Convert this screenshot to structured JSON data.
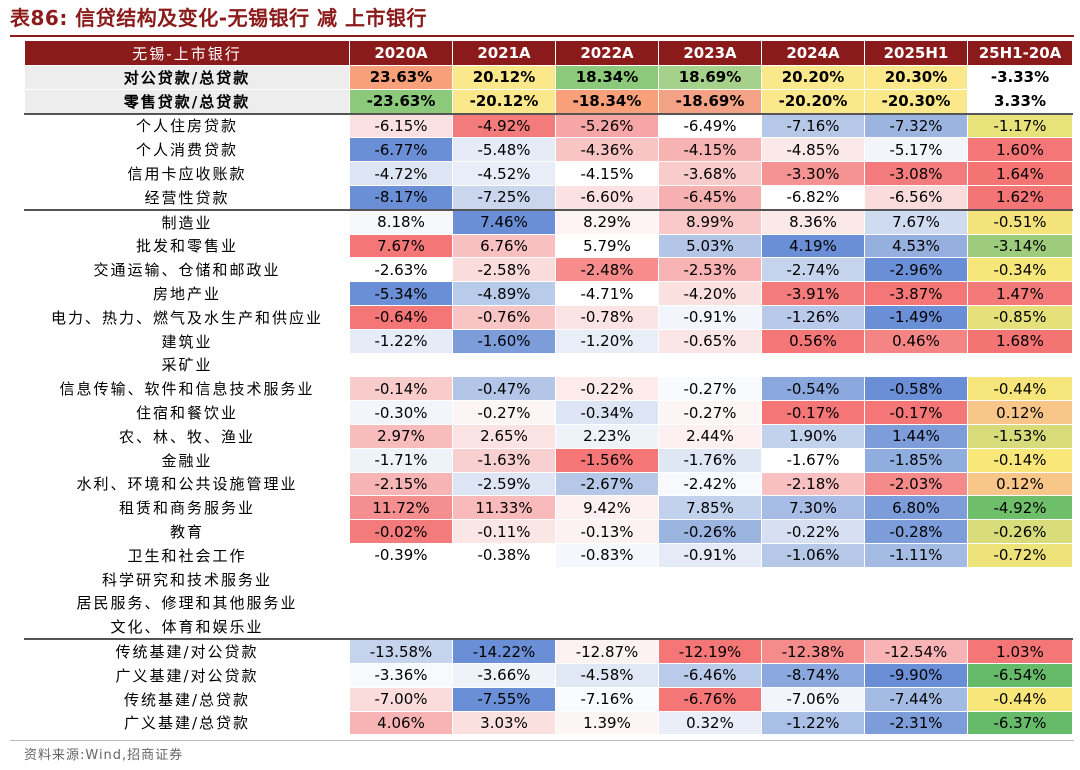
{
  "title": "表86:  信贷结构及变化-无锡银行 减 上市银行",
  "source": "资料来源:Wind,招商证券",
  "chart_data": {
    "type": "table",
    "row_header": "无锡-上市银行",
    "columns": [
      "2020A",
      "2021A",
      "2022A",
      "2023A",
      "2024A",
      "2025H1",
      "25H1-20A"
    ],
    "rows": [
      {
        "label": "对公贷款/总贷款",
        "values": [
          "23.63%",
          "20.12%",
          "18.34%",
          "18.69%",
          "20.20%",
          "20.30%",
          "-3.33%"
        ],
        "colors": [
          "#f7a07a",
          "#fbe88a",
          "#8cc97a",
          "#a6d18a",
          "#fbe88a",
          "#fbe88a",
          "#ffffff"
        ],
        "bold": true,
        "group": "top"
      },
      {
        "label": "零售贷款/总贷款",
        "values": [
          "-23.63%",
          "-20.12%",
          "-18.34%",
          "-18.69%",
          "-20.20%",
          "-20.30%",
          "3.33%"
        ],
        "colors": [
          "#8cc97a",
          "#fbe88a",
          "#f7a07a",
          "#f4a285",
          "#fbe88a",
          "#fbe88a",
          "#ffffff"
        ],
        "bold": true,
        "group": "top"
      },
      {
        "label": "个人住房贷款",
        "values": [
          "-6.15%",
          "-4.92%",
          "-5.26%",
          "-6.49%",
          "-7.16%",
          "-7.32%",
          "-1.17%"
        ],
        "colors": [
          "#fbe1e1",
          "#f47b7b",
          "#f6a6a6",
          "#ffffff",
          "#b6c8e8",
          "#9bb5e0",
          "#e8e27a"
        ],
        "sep": true
      },
      {
        "label": "个人消费贷款",
        "values": [
          "-6.77%",
          "-5.48%",
          "-4.36%",
          "-4.15%",
          "-4.85%",
          "-5.17%",
          "1.60%"
        ],
        "colors": [
          "#6a8fd6",
          "#e6ecf7",
          "#f8c4c4",
          "#f7b2b2",
          "#fbe8e8",
          "#f3f5fb",
          "#f47676"
        ]
      },
      {
        "label": "信用卡应收账款",
        "values": [
          "-4.72%",
          "-4.52%",
          "-4.15%",
          "-3.68%",
          "-3.30%",
          "-3.08%",
          "1.64%"
        ],
        "colors": [
          "#dde5f4",
          "#e8edf7",
          "#ffffff",
          "#f9cccc",
          "#f59393",
          "#f47b7b",
          "#f47373"
        ]
      },
      {
        "label": "经营性贷款",
        "values": [
          "-8.17%",
          "-7.25%",
          "-6.60%",
          "-6.45%",
          "-6.82%",
          "-6.56%",
          "1.62%"
        ],
        "colors": [
          "#6a8fd6",
          "#c9d6ee",
          "#fbe1e1",
          "#f7b0b0",
          "#ffffff",
          "#fadcdc",
          "#f47575"
        ]
      },
      {
        "label": "制造业",
        "values": [
          "8.18%",
          "7.46%",
          "8.29%",
          "8.99%",
          "8.36%",
          "7.67%",
          "-0.51%"
        ],
        "colors": [
          "#f6f8fc",
          "#6a8fd6",
          "#fdf3f3",
          "#f9c8c8",
          "#fbe9e9",
          "#cfdbf0",
          "#f3e37a"
        ],
        "sep": true
      },
      {
        "label": "批发和零售业",
        "values": [
          "7.67%",
          "6.76%",
          "5.79%",
          "5.03%",
          "4.19%",
          "4.53%",
          "-3.14%"
        ],
        "colors": [
          "#f47676",
          "#f8c0c0",
          "#ffffff",
          "#b3c6e8",
          "#6a8fd6",
          "#95b0df",
          "#9ccc7c"
        ]
      },
      {
        "label": "交通运输、仓储和邮政业",
        "values": [
          "-2.63%",
          "-2.58%",
          "-2.48%",
          "-2.53%",
          "-2.74%",
          "-2.96%",
          "-0.34%"
        ],
        "colors": [
          "#ffffff",
          "#fadcdc",
          "#f68c8c",
          "#f8b4b4",
          "#c5d3ed",
          "#6a8fd6",
          "#f7e67a"
        ]
      },
      {
        "label": "房地产业",
        "values": [
          "-5.34%",
          "-4.89%",
          "-4.71%",
          "-4.20%",
          "-3.91%",
          "-3.87%",
          "1.47%"
        ],
        "colors": [
          "#6a8fd6",
          "#b9cbea",
          "#ffffff",
          "#fbe0e0",
          "#f47b7b",
          "#f47676",
          "#f47a7a"
        ]
      },
      {
        "label": "电力、热力、燃气及水生产和供应业",
        "values": [
          "-0.64%",
          "-0.76%",
          "-0.78%",
          "-0.91%",
          "-1.26%",
          "-1.49%",
          "-0.85%"
        ],
        "colors": [
          "#f47676",
          "#f8c4c4",
          "#fce4e4",
          "#f2f5fb",
          "#b8c9e9",
          "#6a8fd6",
          "#e5e07a"
        ]
      },
      {
        "label": "建筑业",
        "values": [
          "-1.22%",
          "-1.60%",
          "-1.20%",
          "-0.65%",
          "0.56%",
          "0.46%",
          "1.68%"
        ],
        "colors": [
          "#e6ecf7",
          "#7c9cda",
          "#e8edf7",
          "#fbe6e6",
          "#f47676",
          "#f58585",
          "#f47373"
        ]
      },
      {
        "label": "采矿业",
        "values": [
          "",
          "",
          "",
          "",
          "",
          "",
          ""
        ],
        "colors": [
          "#ffffff",
          "#ffffff",
          "#ffffff",
          "#ffffff",
          "#ffffff",
          "#ffffff",
          "#ffffff"
        ]
      },
      {
        "label": "信息传输、软件和信息技术服务业",
        "values": [
          "-0.14%",
          "-0.47%",
          "-0.22%",
          "-0.27%",
          "-0.54%",
          "-0.58%",
          "-0.44%"
        ],
        "colors": [
          "#f9cccc",
          "#b3c6e8",
          "#fdeaea",
          "#f9fafd",
          "#8aa8de",
          "#6a8fd6",
          "#f5e57a"
        ]
      },
      {
        "label": "住宿和餐饮业",
        "values": [
          "-0.30%",
          "-0.27%",
          "-0.34%",
          "-0.27%",
          "-0.17%",
          "-0.17%",
          "0.12%"
        ],
        "colors": [
          "#f2f5fb",
          "#fbf5f5",
          "#dde5f4",
          "#fbf5f5",
          "#f47676",
          "#f47676",
          "#f9c68a"
        ]
      },
      {
        "label": "农、林、牧、渔业",
        "values": [
          "2.97%",
          "2.65%",
          "2.23%",
          "2.44%",
          "1.90%",
          "1.44%",
          "-1.53%"
        ],
        "colors": [
          "#f8bcbc",
          "#fbe3e3",
          "#eef2f9",
          "#fcf0f0",
          "#c2d1ec",
          "#7c9cda",
          "#d7db7a"
        ]
      },
      {
        "label": "金融业",
        "values": [
          "-1.71%",
          "-1.63%",
          "-1.56%",
          "-1.76%",
          "-1.67%",
          "-1.85%",
          "-0.14%"
        ],
        "colors": [
          "#eef2f9",
          "#f9d0d0",
          "#f47676",
          "#dfe7f5",
          "#ffffff",
          "#90addf",
          "#f9e77a"
        ]
      },
      {
        "label": "水利、环境和公共设施管理业",
        "values": [
          "-2.15%",
          "-2.59%",
          "-2.67%",
          "-2.42%",
          "-2.18%",
          "-2.03%",
          "0.12%"
        ],
        "colors": [
          "#f7b4b4",
          "#dde5f4",
          "#b6c8e8",
          "#f8f9fd",
          "#f8c0c0",
          "#f58a8a",
          "#f9c68a"
        ]
      },
      {
        "label": "租赁和商务服务业",
        "values": [
          "11.72%",
          "11.33%",
          "9.42%",
          "7.85%",
          "7.30%",
          "6.80%",
          "-4.92%"
        ],
        "colors": [
          "#f58e8e",
          "#f8baba",
          "#fdf0f0",
          "#c2d1ec",
          "#a6bce5",
          "#7c9cda",
          "#6fbf6a"
        ]
      },
      {
        "label": "教育",
        "values": [
          "-0.02%",
          "-0.11%",
          "-0.13%",
          "-0.26%",
          "-0.22%",
          "-0.28%",
          "-0.26%"
        ],
        "colors": [
          "#f47b7b",
          "#fbe6e6",
          "#fdf2f2",
          "#9bb5e0",
          "#d6e0f2",
          "#7c9cda",
          "#d8dc7a"
        ]
      },
      {
        "label": "卫生和社会工作",
        "values": [
          "-0.39%",
          "-0.38%",
          "-0.83%",
          "-0.91%",
          "-1.06%",
          "-1.11%",
          "-0.72%"
        ],
        "colors": [
          "#ffffff",
          "#ffffff",
          "#f5f7fc",
          "#e4eaf6",
          "#b6c8e8",
          "#a4bbe4",
          "#eee27a"
        ]
      },
      {
        "label": "科学研究和技术服务业",
        "values": [
          "",
          "",
          "",
          "",
          "",
          "",
          ""
        ],
        "colors": [
          "#ffffff",
          "#ffffff",
          "#ffffff",
          "#ffffff",
          "#ffffff",
          "#ffffff",
          "#ffffff"
        ]
      },
      {
        "label": "居民服务、修理和其他服务业",
        "values": [
          "",
          "",
          "",
          "",
          "",
          "",
          ""
        ],
        "colors": [
          "#ffffff",
          "#ffffff",
          "#ffffff",
          "#ffffff",
          "#ffffff",
          "#ffffff",
          "#ffffff"
        ]
      },
      {
        "label": "文化、体育和娱乐业",
        "values": [
          "",
          "",
          "",
          "",
          "",
          "",
          ""
        ],
        "colors": [
          "#ffffff",
          "#ffffff",
          "#ffffff",
          "#ffffff",
          "#ffffff",
          "#ffffff",
          "#ffffff"
        ]
      },
      {
        "label": "传统基建/对公贷款",
        "values": [
          "-13.58%",
          "-14.22%",
          "-12.87%",
          "-12.19%",
          "-12.38%",
          "-12.54%",
          "1.03%"
        ],
        "colors": [
          "#c5d3ed",
          "#6a8fd6",
          "#fdf2f2",
          "#f47676",
          "#f58c8c",
          "#f8b4b4",
          "#f47676"
        ],
        "sep": true
      },
      {
        "label": "广义基建/对公贷款",
        "values": [
          "-3.36%",
          "-3.66%",
          "-4.58%",
          "-6.46%",
          "-8.74%",
          "-9.90%",
          "-6.54%"
        ],
        "colors": [
          "#f7f9fd",
          "#eef2f9",
          "#e1e8f5",
          "#b9cbea",
          "#8aa8de",
          "#6a8fd6",
          "#66bb6a"
        ]
      },
      {
        "label": "传统基建/总贷款",
        "values": [
          "-7.00%",
          "-7.55%",
          "-7.16%",
          "-6.76%",
          "-7.06%",
          "-7.44%",
          "-0.44%"
        ],
        "colors": [
          "#fadcdc",
          "#6a8fd6",
          "#fafbfe",
          "#f47676",
          "#f2f5fb",
          "#a4bbe4",
          "#f8e67a"
        ]
      },
      {
        "label": "广义基建/总贷款",
        "values": [
          "4.06%",
          "3.03%",
          "1.39%",
          "0.32%",
          "-1.22%",
          "-2.31%",
          "-6.37%"
        ],
        "colors": [
          "#f8b4b4",
          "#fbe0e0",
          "#fdf4f4",
          "#e9eef8",
          "#a9bfe6",
          "#7c9cda",
          "#66bb6a"
        ]
      }
    ]
  }
}
